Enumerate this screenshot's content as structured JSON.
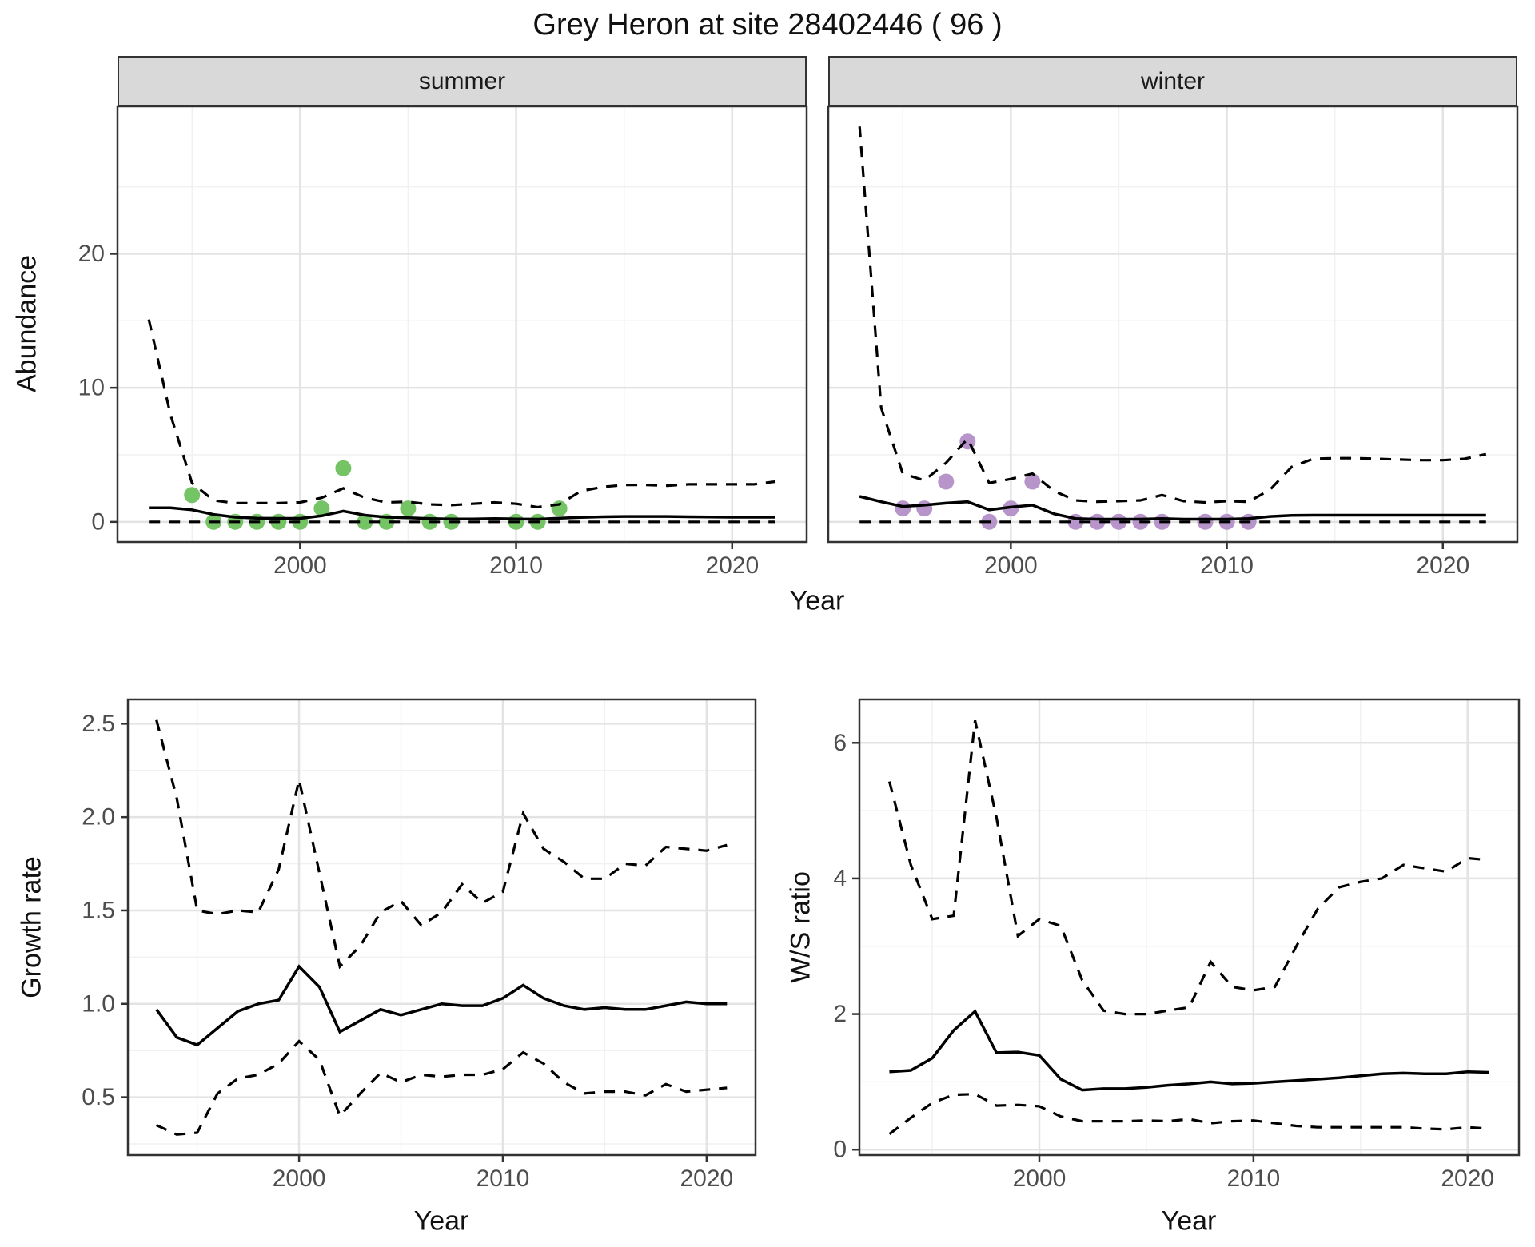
{
  "title": "Grey Heron at site 28402446 ( 96 )",
  "colors": {
    "summer_point": "#74c365",
    "winter_point": "#b795ca",
    "line": "#000000",
    "strip_bg": "#d9d9d9",
    "grid_major": "#e3e3e3",
    "grid_minor": "#f1f1f1",
    "panel_border": "#333333",
    "tick_text": "#4d4d4d"
  },
  "chart_data": [
    {
      "id": "abundance",
      "type": "line",
      "xlabel": "Year",
      "ylabel": "Abundance",
      "xlim": [
        1991.55,
        2023.45
      ],
      "ylim": [
        -1.5,
        31
      ],
      "x_ticks": {
        "values": [
          2000,
          2010,
          2020
        ],
        "labels": [
          "2000",
          "2010",
          "2020"
        ]
      },
      "x_minor": [
        1995,
        2005,
        2015
      ],
      "y_ticks": {
        "values": [
          0,
          10,
          20
        ],
        "labels": [
          "0",
          "10",
          "20"
        ]
      },
      "y_minor": [
        5,
        15,
        25
      ],
      "grid": true,
      "legend": "none",
      "years": [
        1993,
        1994,
        1995,
        1996,
        1997,
        1998,
        1999,
        2000,
        2001,
        2002,
        2003,
        2004,
        2005,
        2006,
        2007,
        2008,
        2009,
        2010,
        2011,
        2012,
        2013,
        2014,
        2015,
        2016,
        2017,
        2018,
        2019,
        2020,
        2021,
        2022
      ],
      "facets": [
        {
          "label": "summer",
          "point_color": "#74c365",
          "median": [
            1.05,
            1.05,
            0.9,
            0.55,
            0.35,
            0.28,
            0.26,
            0.26,
            0.45,
            0.8,
            0.5,
            0.35,
            0.3,
            0.25,
            0.22,
            0.22,
            0.25,
            0.22,
            0.2,
            0.28,
            0.33,
            0.38,
            0.4,
            0.4,
            0.4,
            0.38,
            0.36,
            0.35,
            0.35,
            0.35
          ],
          "upper_ci": [
            15.1,
            8.0,
            2.9,
            1.6,
            1.4,
            1.4,
            1.4,
            1.45,
            1.8,
            2.5,
            1.8,
            1.45,
            1.5,
            1.3,
            1.25,
            1.35,
            1.45,
            1.35,
            1.1,
            1.3,
            2.3,
            2.6,
            2.75,
            2.75,
            2.7,
            2.8,
            2.8,
            2.8,
            2.8,
            3.0
          ],
          "lower_ci": [
            0,
            0,
            0,
            0,
            0,
            0,
            0,
            0,
            0,
            0,
            0,
            0,
            0,
            0,
            0,
            0,
            0,
            0,
            0,
            0,
            0,
            0,
            0,
            0,
            0,
            0,
            0,
            0,
            0,
            0
          ],
          "obs_years": [
            1995,
            1996,
            1997,
            1998,
            1999,
            2000,
            2001,
            2002,
            2003,
            2004,
            2005,
            2006,
            2007,
            2010,
            2011,
            2012
          ],
          "obs_values": [
            2,
            0,
            0,
            0,
            0,
            0,
            1,
            4,
            0,
            0,
            1,
            0,
            0,
            0,
            0,
            1
          ]
        },
        {
          "label": "winter",
          "point_color": "#b795ca",
          "median": [
            1.9,
            1.5,
            1.15,
            1.25,
            1.4,
            1.5,
            0.9,
            1.1,
            1.25,
            0.6,
            0.25,
            0.2,
            0.2,
            0.2,
            0.25,
            0.2,
            0.2,
            0.2,
            0.25,
            0.4,
            0.48,
            0.5,
            0.5,
            0.5,
            0.5,
            0.5,
            0.5,
            0.5,
            0.5,
            0.5
          ],
          "upper_ci": [
            29.5,
            8.5,
            3.6,
            3.1,
            4.4,
            6.2,
            2.9,
            3.2,
            3.6,
            2.3,
            1.6,
            1.5,
            1.55,
            1.6,
            2.0,
            1.55,
            1.45,
            1.55,
            1.5,
            2.4,
            4.1,
            4.7,
            4.75,
            4.75,
            4.7,
            4.65,
            4.6,
            4.6,
            4.7,
            5.05
          ],
          "lower_ci": [
            0,
            0,
            0,
            0,
            0,
            0,
            0,
            0,
            0,
            0,
            0,
            0,
            0,
            0,
            0,
            0,
            0,
            0,
            0,
            0,
            0,
            0,
            0,
            0,
            0,
            0,
            0,
            0,
            0,
            0
          ],
          "obs_years": [
            1995,
            1996,
            1997,
            1998,
            1999,
            2000,
            2001,
            2003,
            2004,
            2005,
            2006,
            2007,
            2009,
            2010,
            2011
          ],
          "obs_values": [
            1,
            1,
            3,
            6,
            0,
            1,
            3,
            0,
            0,
            0,
            0,
            0,
            0,
            0,
            0
          ]
        }
      ]
    },
    {
      "id": "growth_rate",
      "type": "line",
      "xlabel": "Year",
      "ylabel": "Growth rate",
      "xlim": [
        1991.6,
        2022.4
      ],
      "ylim": [
        0.19,
        2.63
      ],
      "x_ticks": {
        "values": [
          2000,
          2010,
          2020
        ],
        "labels": [
          "2000",
          "2010",
          "2020"
        ]
      },
      "x_minor": [
        1995,
        2005,
        2015
      ],
      "y_ticks": {
        "values": [
          0.5,
          1.0,
          1.5,
          2.0,
          2.5
        ],
        "labels": [
          "0.5",
          "1.0",
          "1.5",
          "2.0",
          "2.5"
        ]
      },
      "y_minor": [
        0.25,
        0.75,
        1.25,
        1.75,
        2.25
      ],
      "grid": true,
      "legend": "none",
      "years": [
        1993,
        1994,
        1995,
        1996,
        1997,
        1998,
        1999,
        2000,
        2001,
        2002,
        2003,
        2004,
        2005,
        2006,
        2007,
        2008,
        2009,
        2010,
        2011,
        2012,
        2013,
        2014,
        2015,
        2016,
        2017,
        2018,
        2019,
        2020,
        2021
      ],
      "median": [
        0.97,
        0.82,
        0.78,
        0.87,
        0.96,
        1.0,
        1.02,
        1.2,
        1.09,
        0.85,
        0.91,
        0.97,
        0.94,
        0.97,
        1.0,
        0.99,
        0.99,
        1.03,
        1.1,
        1.03,
        0.99,
        0.97,
        0.98,
        0.97,
        0.97,
        0.99,
        1.01,
        1.0,
        1.0
      ],
      "upper_ci": [
        2.52,
        2.1,
        1.5,
        1.48,
        1.5,
        1.49,
        1.72,
        2.2,
        1.7,
        1.2,
        1.31,
        1.49,
        1.55,
        1.42,
        1.49,
        1.64,
        1.54,
        1.6,
        2.02,
        1.83,
        1.76,
        1.67,
        1.67,
        1.75,
        1.74,
        1.84,
        1.83,
        1.82,
        1.85
      ],
      "lower_ci": [
        0.35,
        0.3,
        0.31,
        0.52,
        0.6,
        0.62,
        0.68,
        0.8,
        0.7,
        0.4,
        0.52,
        0.63,
        0.58,
        0.62,
        0.61,
        0.62,
        0.62,
        0.65,
        0.74,
        0.68,
        0.58,
        0.52,
        0.53,
        0.53,
        0.51,
        0.57,
        0.53,
        0.54,
        0.55
      ]
    },
    {
      "id": "ws_ratio",
      "type": "line",
      "xlabel": "Year",
      "ylabel": "W/S ratio",
      "xlim": [
        1991.6,
        2022.4
      ],
      "ylim": [
        -0.08,
        6.64
      ],
      "x_ticks": {
        "values": [
          2000,
          2010,
          2020
        ],
        "labels": [
          "2000",
          "2010",
          "2020"
        ]
      },
      "x_minor": [
        1995,
        2005,
        2015
      ],
      "y_ticks": {
        "values": [
          0,
          2,
          4,
          6
        ],
        "labels": [
          "0",
          "2",
          "4",
          "6"
        ]
      },
      "y_minor": [
        1,
        3,
        5
      ],
      "grid": true,
      "legend": "none",
      "years": [
        1993,
        1994,
        1995,
        1996,
        1997,
        1998,
        1999,
        2000,
        2001,
        2002,
        2003,
        2004,
        2005,
        2006,
        2007,
        2008,
        2009,
        2010,
        2011,
        2012,
        2013,
        2014,
        2015,
        2016,
        2017,
        2018,
        2019,
        2020,
        2021
      ],
      "median": [
        1.15,
        1.17,
        1.35,
        1.76,
        2.04,
        1.43,
        1.44,
        1.39,
        1.04,
        0.88,
        0.9,
        0.9,
        0.92,
        0.95,
        0.97,
        1.0,
        0.97,
        0.98,
        1.0,
        1.02,
        1.04,
        1.06,
        1.09,
        1.12,
        1.13,
        1.12,
        1.12,
        1.15,
        1.14
      ],
      "upper_ci": [
        5.43,
        4.2,
        3.4,
        3.45,
        6.33,
        4.9,
        3.15,
        3.4,
        3.3,
        2.5,
        2.05,
        2.0,
        2.0,
        2.05,
        2.1,
        2.77,
        2.4,
        2.35,
        2.4,
        3.0,
        3.55,
        3.87,
        3.95,
        4.0,
        4.2,
        4.15,
        4.1,
        4.3,
        4.27
      ],
      "lower_ci": [
        0.23,
        0.47,
        0.69,
        0.81,
        0.82,
        0.65,
        0.66,
        0.64,
        0.49,
        0.42,
        0.42,
        0.42,
        0.43,
        0.42,
        0.45,
        0.39,
        0.42,
        0.43,
        0.39,
        0.35,
        0.33,
        0.33,
        0.33,
        0.33,
        0.33,
        0.31,
        0.3,
        0.33,
        0.31
      ]
    }
  ]
}
